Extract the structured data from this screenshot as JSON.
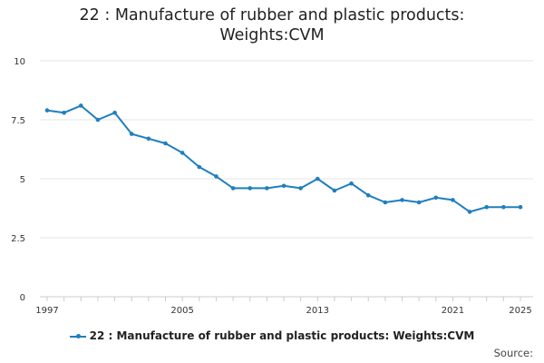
{
  "colors": {
    "series": "#1f7fbf",
    "grid": "#e6e6e6",
    "axis": "#cccccc"
  },
  "title_lines": [
    "22 : Manufacture of rubber and plastic products:",
    "Weights:CVM"
  ],
  "legend": {
    "label": "22 : Manufacture of rubber and plastic products: Weights:CVM"
  },
  "source": "Source:",
  "chart_data": {
    "type": "line",
    "title": "22 : Manufacture of rubber and plastic products: Weights:CVM",
    "xlabel": "",
    "ylabel": "",
    "xlim": [
      1997,
      2025
    ],
    "ylim": [
      0,
      10
    ],
    "x_ticks": [
      1997,
      2005,
      2013,
      2021,
      2025
    ],
    "y_ticks": [
      0,
      2.5,
      5,
      7.5,
      10
    ],
    "y_tick_labels": [
      "0",
      "2.5",
      "5",
      "7.5",
      "10"
    ],
    "grid": true,
    "legend_position": "bottom",
    "x": [
      1997,
      1998,
      1999,
      2000,
      2001,
      2002,
      2003,
      2004,
      2005,
      2006,
      2007,
      2008,
      2009,
      2010,
      2011,
      2012,
      2013,
      2014,
      2015,
      2016,
      2017,
      2018,
      2019,
      2020,
      2021,
      2022,
      2023,
      2024,
      2025
    ],
    "series": [
      {
        "name": "22 : Manufacture of rubber and plastic products: Weights:CVM",
        "values": [
          7.9,
          7.8,
          8.1,
          7.5,
          7.8,
          6.9,
          6.7,
          6.5,
          6.1,
          5.5,
          5.1,
          4.6,
          4.6,
          4.6,
          4.7,
          4.6,
          5.0,
          4.5,
          4.8,
          4.3,
          4.0,
          4.1,
          4.0,
          4.2,
          4.1,
          3.6,
          3.8,
          3.8,
          3.8
        ]
      }
    ]
  }
}
